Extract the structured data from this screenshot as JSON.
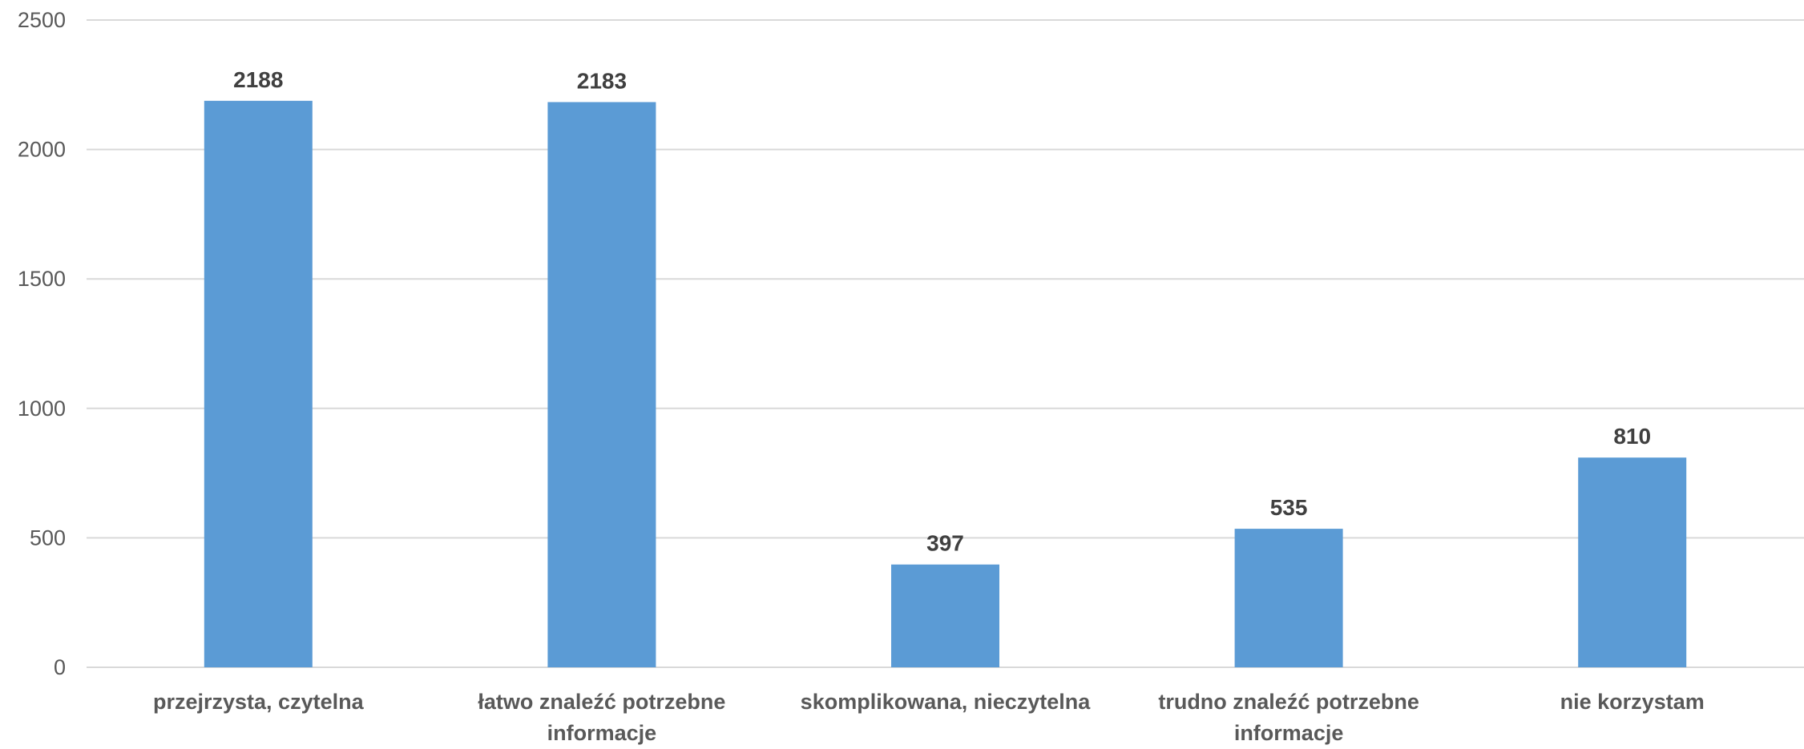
{
  "chart_data": {
    "type": "bar",
    "title": "",
    "xlabel": "",
    "ylabel": "",
    "categories": [
      [
        "przejrzysta, czytelna"
      ],
      [
        "łatwo znaleźć potrzebne",
        "informacje"
      ],
      [
        "skomplikowana, nieczytelna"
      ],
      [
        "trudno znaleźć potrzebne",
        "informacje"
      ],
      [
        "nie korzystam"
      ]
    ],
    "values": [
      2188,
      2183,
      397,
      535,
      810
    ],
    "ylim": [
      0,
      2500
    ],
    "yticks": [
      0,
      500,
      1000,
      1500,
      2000,
      2500
    ],
    "grid": true,
    "legend": "none",
    "data_labels": true,
    "bar_color": "#5b9bd5",
    "grid_color": "#d9d9d9",
    "text_color": "#595959",
    "label_color": "#404040"
  }
}
